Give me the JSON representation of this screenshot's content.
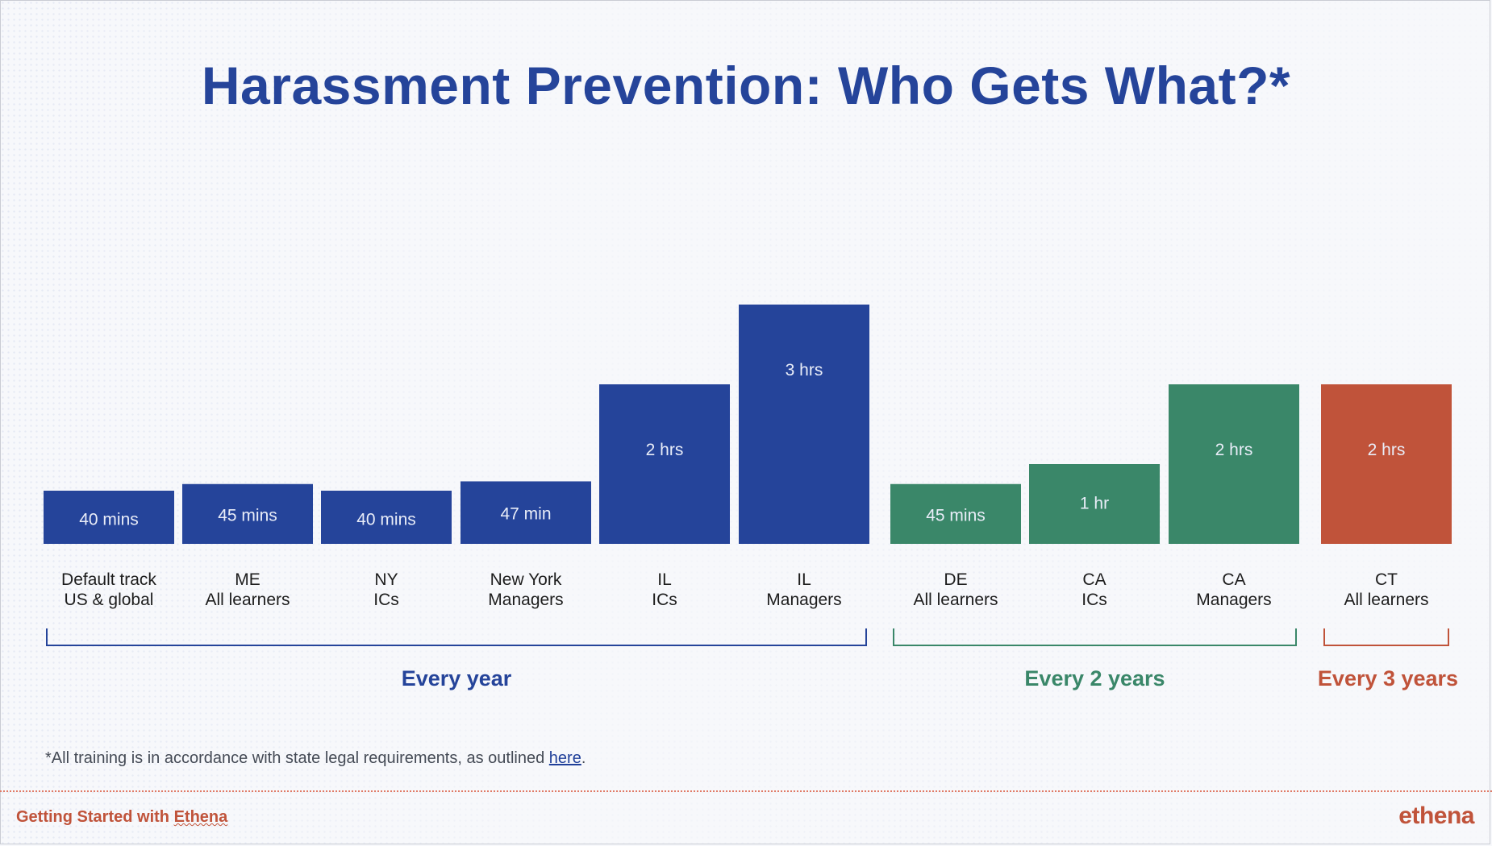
{
  "title": "Harassment Prevention: Who Gets What?*",
  "chart_data": {
    "type": "bar",
    "title": "Harassment Prevention: Who Gets What?*",
    "unit": "minutes",
    "categories": [
      [
        "Default track",
        "US & global"
      ],
      [
        "ME",
        "All learners"
      ],
      [
        "NY",
        "ICs"
      ],
      [
        "New York",
        "Managers"
      ],
      [
        "IL",
        "ICs"
      ],
      [
        "IL",
        "Managers"
      ],
      [
        "DE",
        "All learners"
      ],
      [
        "CA",
        "ICs"
      ],
      [
        "CA",
        "Managers"
      ],
      [
        "CT",
        "All learners"
      ]
    ],
    "values": [
      40,
      45,
      40,
      47,
      120,
      180,
      45,
      60,
      120,
      120
    ],
    "value_labels": [
      "40 mins",
      "45 mins",
      "40 mins",
      "47 min",
      "2 hrs",
      "3 hrs",
      "45 mins",
      "1 hr",
      "2 hrs",
      "2 hrs"
    ],
    "groups": [
      {
        "label": "Every year",
        "color": "#25449a",
        "start": 0,
        "end": 5
      },
      {
        "label": "Every 2 years",
        "color": "#3a8769",
        "start": 6,
        "end": 8
      },
      {
        "label": "Every 3 years",
        "color": "#c0533a",
        "start": 9,
        "end": 9
      }
    ],
    "grid": false,
    "legend": "none"
  },
  "footnote": {
    "text": "*All training is in accordance with state legal requirements, as outlined ",
    "link": "here",
    "after": "."
  },
  "footer": {
    "left_prefix": "Getting Started with ",
    "left_brand": "Ethena",
    "logo": "ethena"
  }
}
